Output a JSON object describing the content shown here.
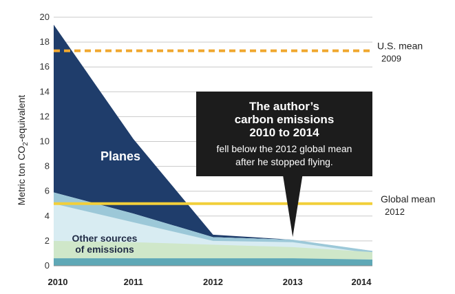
{
  "chart_data": {
    "type": "area",
    "ylabel": "Metric ton CO",
    "ylabel_sub": "2",
    "ylabel_suffix": "-equivalent",
    "x": [
      "2010",
      "2011",
      "2012",
      "2013",
      "2014"
    ],
    "ylim": [
      0,
      20
    ],
    "yticks": [
      "0",
      "2",
      "4",
      "6",
      "8",
      "10",
      "12",
      "14",
      "16",
      "18",
      "20"
    ],
    "grid": true,
    "series": [
      {
        "name": "Planes",
        "color": "#1f3d6b",
        "values": [
          19.4,
          10.2,
          2.5,
          2.1,
          1.2
        ]
      },
      {
        "name": "Other sources of emissions",
        "color": "#d8ecf2",
        "values": [
          5.9,
          4.2,
          2.3,
          2.1,
          1.2
        ]
      }
    ],
    "bands": [
      {
        "color": "#9cc8d8",
        "upper": [
          5.9,
          4.2,
          2.3,
          2.1,
          1.2
        ],
        "lower": [
          5.0,
          3.5,
          2.0,
          1.9,
          1.0
        ]
      },
      {
        "color": "#cfe7c9",
        "upper": [
          2.0,
          1.9,
          1.7,
          1.5,
          1.1
        ],
        "lower": [
          0.6,
          0.6,
          0.6,
          0.6,
          0.5
        ]
      },
      {
        "color": "#5fa8b6",
        "upper": [
          0.6,
          0.6,
          0.6,
          0.6,
          0.5
        ],
        "lower": [
          0.0,
          0.0,
          0.0,
          0.0,
          0.0
        ]
      }
    ],
    "reference_lines": [
      {
        "label": "U.S. mean",
        "sub": "2009",
        "value": 17.3,
        "color": "#f0a830",
        "style": "dashed"
      },
      {
        "label": "Global mean",
        "sub": "2012",
        "value": 5.0,
        "color": "#f2cf3a",
        "style": "solid"
      }
    ],
    "labels": {
      "planes": "Planes",
      "other_line1": "Other sources",
      "other_line2": "of emissions"
    },
    "callout": {
      "title_lines": [
        "The author’s",
        "carbon emissions",
        "2010 to 2014"
      ],
      "body_lines": [
        "fell below the 2012 global mean",
        "after he stopped flying."
      ],
      "points_to": {
        "x": "2013",
        "y": 2.1
      },
      "color": "#1c1c1c"
    }
  }
}
